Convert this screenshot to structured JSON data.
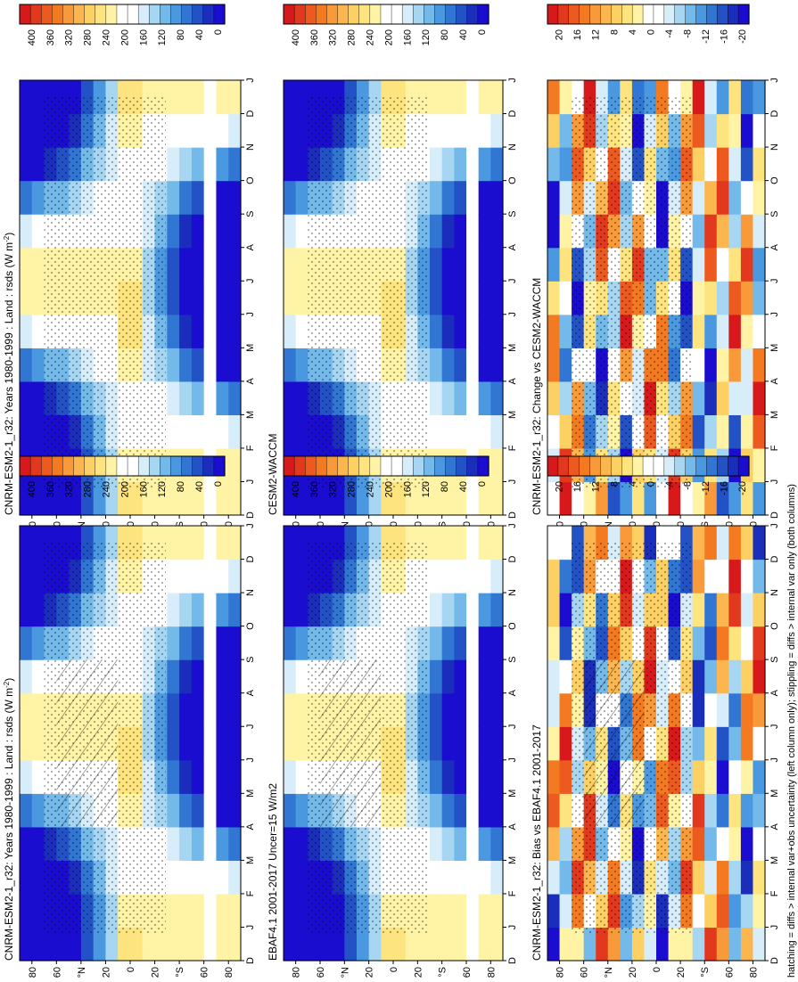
{
  "figure": {
    "footnote": "hatching = diffs > internal var+obs uncertainty (left column only); stippling = diffs > internal var only (both columns)"
  },
  "colors": {
    "abs_scale": [
      "#d7191c",
      "#e2381e",
      "#ec5a1f",
      "#f47a21",
      "#f89a3a",
      "#fbb64f",
      "#fdd063",
      "#fde47f",
      "#fff3a6",
      "#ffffff",
      "#ffffff",
      "#d7edf9",
      "#a7d6f3",
      "#73baeb",
      "#4a98df",
      "#3176d3",
      "#2252c6",
      "#1a2dbb",
      "#1a0dd0"
    ],
    "diff_scale": [
      "#d7191c",
      "#e2381e",
      "#ec5a1f",
      "#f47a21",
      "#f89a3a",
      "#fbb64f",
      "#fdd063",
      "#fde47f",
      "#fff3a6",
      "#ffffff",
      "#ffffff",
      "#d7edf9",
      "#a7d6f3",
      "#73baeb",
      "#4a98df",
      "#3176d3",
      "#2252c6",
      "#1a2dbb",
      "#1a0dd0"
    ]
  },
  "chart_data": [
    {
      "id": "p_top_right",
      "type": "heatmap",
      "title": "CNRM-ESM2-1_r32: Years 1980-1999 : Land : rsds (W m",
      "title_unit_sup": "-2",
      "title_close": ")",
      "months": [
        "D",
        "J",
        "F",
        "M",
        "A",
        "M",
        "J",
        "J",
        "A",
        "S",
        "O",
        "N",
        "D",
        "J"
      ],
      "lat_ticks": [
        "80",
        "60",
        "°N",
        "20",
        "0",
        "20",
        "°S",
        "60",
        "80"
      ],
      "colorbar": {
        "labels": [
          "400",
          "360",
          "320",
          "280",
          "240",
          "200",
          "160",
          "120",
          "80",
          "40",
          "0"
        ],
        "range": [
          0,
          400
        ]
      },
      "field": "absolute",
      "stippling": true,
      "hatching": false
    },
    {
      "id": "p_top_left",
      "type": "heatmap",
      "title": "CNRM-ESM2-1_r32: Years 1980-1999 : Land : rsds (W m",
      "title_unit_sup": "-2",
      "title_close": ")",
      "months": [
        "D",
        "J",
        "F",
        "M",
        "A",
        "M",
        "J",
        "J",
        "A",
        "S",
        "O",
        "N",
        "D",
        "J"
      ],
      "lat_ticks": [
        "80",
        "60",
        "°N",
        "20",
        "0",
        "20",
        "°S",
        "60",
        "80"
      ],
      "colorbar": {
        "labels": [
          "400",
          "360",
          "320",
          "280",
          "240",
          "200",
          "160",
          "120",
          "80",
          "40",
          "0"
        ],
        "range": [
          0,
          400
        ]
      },
      "field": "absolute",
      "stippling": true,
      "hatching": true
    },
    {
      "id": "p_mid_right",
      "type": "heatmap",
      "title": "CESM2-WACCM",
      "months": [
        "D",
        "J",
        "F",
        "M",
        "A",
        "M",
        "J",
        "J",
        "A",
        "S",
        "O",
        "N",
        "D",
        "J"
      ],
      "lat_ticks": [
        "80",
        "60",
        "°N",
        "20",
        "0",
        "20",
        "°S",
        "60",
        "80"
      ],
      "colorbar": {
        "labels": [
          "400",
          "360",
          "320",
          "280",
          "240",
          "200",
          "160",
          "120",
          "80",
          "40",
          "0"
        ],
        "range": [
          0,
          400
        ]
      },
      "field": "absolute",
      "stippling": true,
      "hatching": false
    },
    {
      "id": "p_mid_left",
      "type": "heatmap",
      "title": "EBAF4.1 2001-2017 Uncer=15 W/m2",
      "months": [
        "D",
        "J",
        "F",
        "M",
        "A",
        "M",
        "J",
        "J",
        "A",
        "S",
        "O",
        "N",
        "D",
        "J"
      ],
      "lat_ticks": [
        "80",
        "60",
        "°N",
        "20",
        "0",
        "20",
        "°S",
        "60",
        "80"
      ],
      "colorbar": {
        "labels": [
          "400",
          "360",
          "320",
          "280",
          "240",
          "200",
          "160",
          "120",
          "80",
          "40",
          "0"
        ],
        "range": [
          0,
          400
        ]
      },
      "field": "absolute",
      "stippling": true,
      "hatching": true
    },
    {
      "id": "p_bot_right",
      "type": "heatmap",
      "title": "CNRM-ESM2-1_r32: Change vs CESM2-WACCM",
      "months": [
        "D",
        "J",
        "F",
        "M",
        "A",
        "M",
        "J",
        "J",
        "A",
        "S",
        "O",
        "N",
        "D",
        "J"
      ],
      "lat_ticks": [
        "80",
        "60",
        "°N",
        "20",
        "0",
        "20",
        "°S",
        "60",
        "80"
      ],
      "colorbar": {
        "labels": [
          "20",
          "16",
          "12",
          "8",
          "4",
          "0",
          "-4",
          "-8",
          "-12",
          "-16",
          "-20"
        ],
        "range": [
          -20,
          20
        ]
      },
      "field": "difference",
      "stippling": true,
      "hatching": false
    },
    {
      "id": "p_bot_left",
      "type": "heatmap",
      "title": "CNRM-ESM2-1_r32: Bias vs EBAF4.1 2001-2017",
      "months": [
        "D",
        "J",
        "F",
        "M",
        "A",
        "M",
        "J",
        "J",
        "A",
        "S",
        "O",
        "N",
        "D",
        "J"
      ],
      "lat_ticks": [
        "80",
        "60",
        "°N",
        "20",
        "0",
        "20",
        "°S",
        "60",
        "80"
      ],
      "colorbar": {
        "labels": [
          "20",
          "16",
          "12",
          "8",
          "4",
          "0",
          "-4",
          "-8",
          "-12",
          "-16",
          "-20"
        ],
        "range": [
          -20,
          20
        ]
      },
      "field": "difference",
      "stippling": true,
      "hatching": true
    }
  ]
}
